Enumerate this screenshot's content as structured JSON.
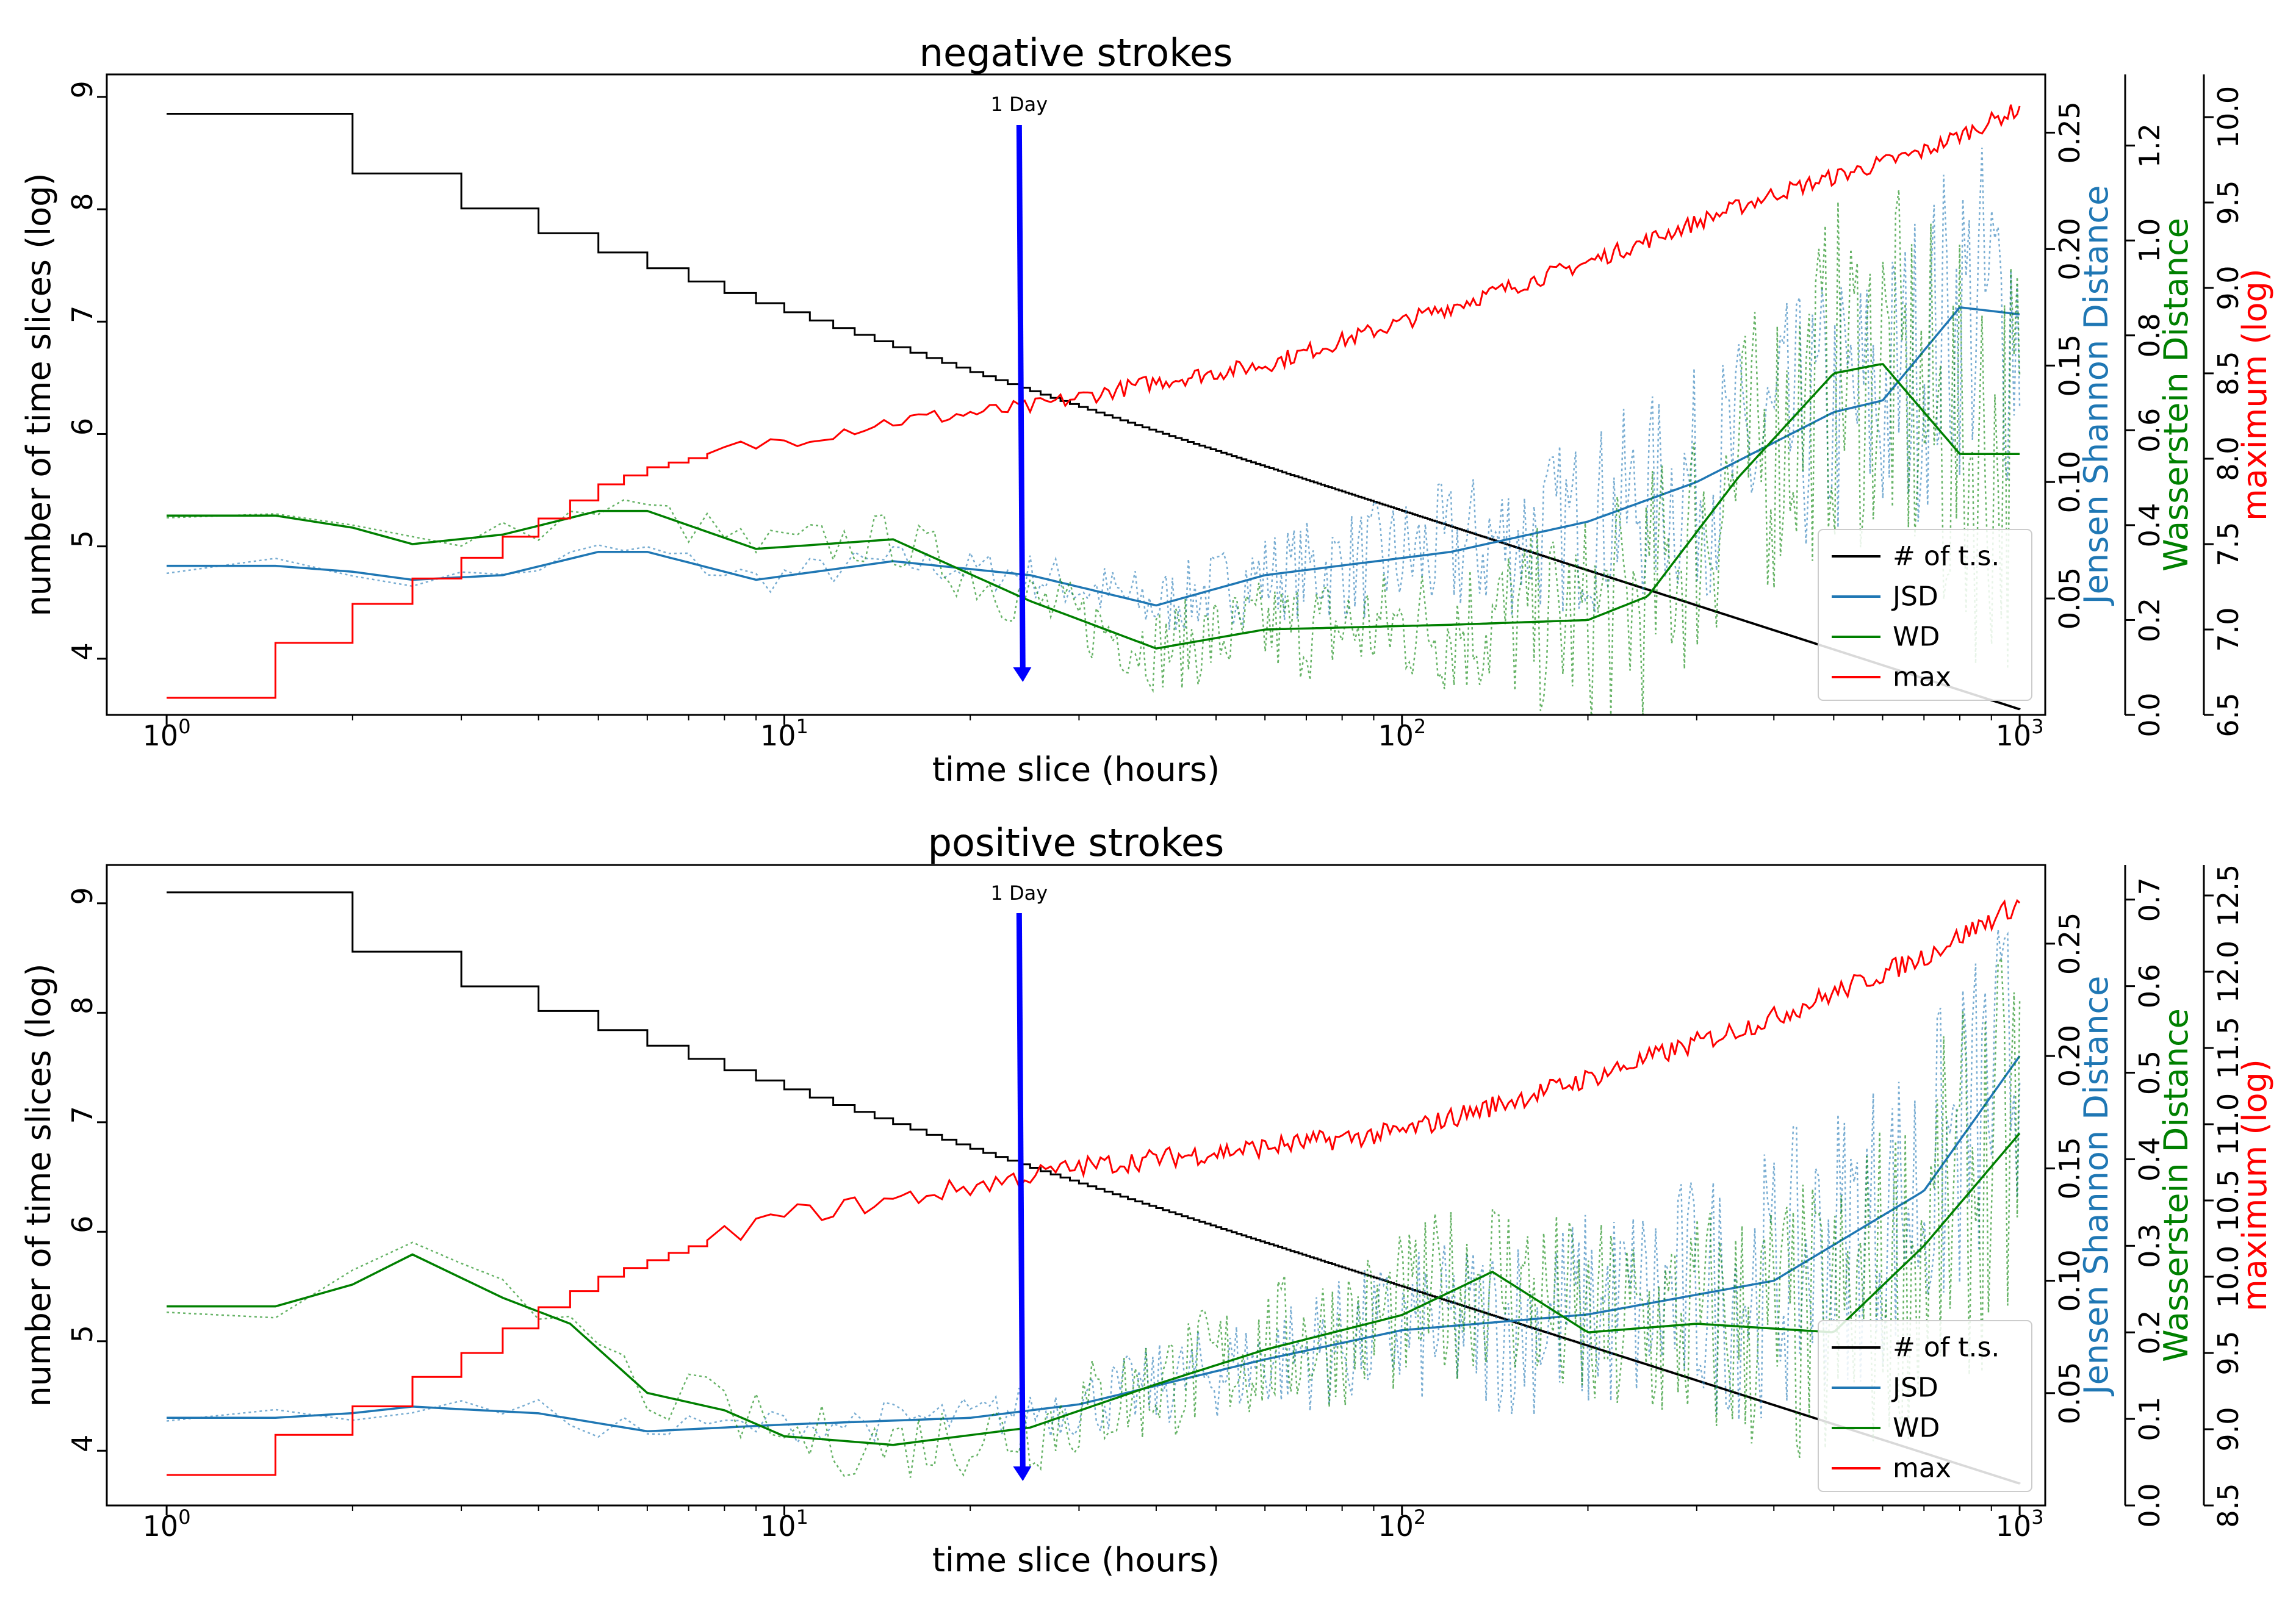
{
  "chart_data": [
    {
      "type": "line",
      "title": "negative strokes",
      "xlabel": "time slice (hours)",
      "xscale": "log",
      "xlim": [
        0.8,
        1100
      ],
      "x_ticks": [
        {
          "value": 1,
          "base": "10",
          "exp": "0"
        },
        {
          "value": 10,
          "base": "10",
          "exp": "1"
        },
        {
          "value": 100,
          "base": "10",
          "exp": "2"
        },
        {
          "value": 1000,
          "base": "10",
          "exp": "3"
        }
      ],
      "left_axis": {
        "label": "number of time slices (log)",
        "color": "#000000",
        "ylim": [
          3.5,
          9.2
        ],
        "ticks": [
          {
            "value": 4,
            "label": "4"
          },
          {
            "value": 5,
            "label": "5"
          },
          {
            "value": 6,
            "label": "6"
          },
          {
            "value": 7,
            "label": "7"
          },
          {
            "value": 8,
            "label": "8"
          },
          {
            "value": 9,
            "label": "9"
          }
        ]
      },
      "right_axes": [
        {
          "id": "jsd",
          "label": "Jensen Shannon Distance",
          "color": "#1f77b4",
          "ylim": [
            0.0,
            0.275
          ],
          "ticks": [
            {
              "value": 0.05,
              "label": "0.05"
            },
            {
              "value": 0.1,
              "label": "0.10"
            },
            {
              "value": 0.15,
              "label": "0.15"
            },
            {
              "value": 0.2,
              "label": "0.20"
            },
            {
              "value": 0.25,
              "label": "0.25"
            }
          ]
        },
        {
          "id": "wd",
          "label": "Wasserstein Distance",
          "color": "#008000",
          "ylim": [
            0.0,
            1.35
          ],
          "ticks": [
            {
              "value": 0.0,
              "label": "0.0"
            },
            {
              "value": 0.2,
              "label": "0.2"
            },
            {
              "value": 0.4,
              "label": "0.4"
            },
            {
              "value": 0.6,
              "label": "0.6"
            },
            {
              "value": 0.8,
              "label": "0.8"
            },
            {
              "value": 1.0,
              "label": "1.0"
            },
            {
              "value": 1.2,
              "label": "1.2"
            }
          ]
        },
        {
          "id": "max",
          "label": "maximum (log)",
          "color": "#ff0000",
          "ylim": [
            6.5,
            10.25
          ],
          "ticks": [
            {
              "value": 6.5,
              "label": "6.5"
            },
            {
              "value": 7.0,
              "label": "7.0"
            },
            {
              "value": 7.5,
              "label": "7.5"
            },
            {
              "value": 8.0,
              "label": "8.0"
            },
            {
              "value": 8.5,
              "label": "8.5"
            },
            {
              "value": 9.0,
              "label": "9.0"
            },
            {
              "value": 9.5,
              "label": "9.5"
            },
            {
              "value": 10.0,
              "label": "10.0"
            }
          ]
        }
      ],
      "annotation": {
        "text": "1 Day",
        "x": 24
      },
      "legend": {
        "position": "lower right",
        "entries": [
          {
            "label": "# of t.s.",
            "color": "#000000"
          },
          {
            "label": "JSD",
            "color": "#1f77b4"
          },
          {
            "label": "WD",
            "color": "#008000"
          },
          {
            "label": "max",
            "color": "#ff0000"
          }
        ]
      },
      "series": [
        {
          "name": "# of t.s.",
          "axis": "left",
          "kind": "count",
          "start": 8.85,
          "end": 3.55
        },
        {
          "name": "JSD",
          "axis": "jsd",
          "kind": "smooth",
          "points": [
            [
              1,
              0.064
            ],
            [
              1.7,
              0.064
            ],
            [
              2.5,
              0.058
            ],
            [
              3.5,
              0.06
            ],
            [
              5,
              0.07
            ],
            [
              6,
              0.07
            ],
            [
              9,
              0.058
            ],
            [
              15,
              0.066
            ],
            [
              25,
              0.06
            ],
            [
              40,
              0.047
            ],
            [
              60,
              0.06
            ],
            [
              120,
              0.07
            ],
            [
              200,
              0.083
            ],
            [
              300,
              0.1
            ],
            [
              500,
              0.13
            ],
            [
              600,
              0.135
            ],
            [
              800,
              0.175
            ],
            [
              1000,
              0.172
            ]
          ],
          "noise": [
            [
              1,
              0.002
            ],
            [
              20,
              0.005
            ],
            [
              60,
              0.012
            ],
            [
              200,
              0.025
            ],
            [
              1000,
              0.05
            ]
          ]
        },
        {
          "name": "WD",
          "axis": "wd",
          "kind": "smooth",
          "points": [
            [
              1,
              0.42
            ],
            [
              1.7,
              0.42
            ],
            [
              2.5,
              0.36
            ],
            [
              3.5,
              0.38
            ],
            [
              5,
              0.43
            ],
            [
              6,
              0.43
            ],
            [
              9,
              0.35
            ],
            [
              15,
              0.37
            ],
            [
              25,
              0.24
            ],
            [
              40,
              0.14
            ],
            [
              60,
              0.18
            ],
            [
              120,
              0.19
            ],
            [
              200,
              0.2
            ],
            [
              250,
              0.25
            ],
            [
              350,
              0.5
            ],
            [
              500,
              0.72
            ],
            [
              600,
              0.74
            ],
            [
              800,
              0.55
            ],
            [
              1000,
              0.55
            ]
          ],
          "noise": [
            [
              1,
              0.005
            ],
            [
              20,
              0.04
            ],
            [
              100,
              0.08
            ],
            [
              300,
              0.18
            ],
            [
              1000,
              0.3
            ]
          ]
        },
        {
          "name": "max",
          "axis": "max",
          "kind": "rising",
          "points": [
            [
              1,
              6.6
            ],
            [
              2,
              7.15
            ],
            [
              3,
              7.42
            ],
            [
              4,
              7.65
            ],
            [
              5,
              7.85
            ],
            [
              6,
              7.95
            ],
            [
              8,
              8.05
            ],
            [
              15,
              8.22
            ],
            [
              25,
              8.3
            ],
            [
              40,
              8.45
            ],
            [
              60,
              8.55
            ],
            [
              100,
              8.8
            ],
            [
              200,
              9.15
            ],
            [
              400,
              9.55
            ],
            [
              700,
              9.8
            ],
            [
              1000,
              10.05
            ]
          ],
          "noise": 0.05
        }
      ]
    },
    {
      "type": "line",
      "title": "positive strokes",
      "xlabel": "time slice (hours)",
      "xscale": "log",
      "xlim": [
        0.8,
        1100
      ],
      "x_ticks": [
        {
          "value": 1,
          "base": "10",
          "exp": "0"
        },
        {
          "value": 10,
          "base": "10",
          "exp": "1"
        },
        {
          "value": 100,
          "base": "10",
          "exp": "2"
        },
        {
          "value": 1000,
          "base": "10",
          "exp": "3"
        }
      ],
      "left_axis": {
        "label": "number of time slices (log)",
        "color": "#000000",
        "ylim": [
          3.5,
          9.35
        ],
        "ticks": [
          {
            "value": 4,
            "label": "4"
          },
          {
            "value": 5,
            "label": "5"
          },
          {
            "value": 6,
            "label": "6"
          },
          {
            "value": 7,
            "label": "7"
          },
          {
            "value": 8,
            "label": "8"
          },
          {
            "value": 9,
            "label": "9"
          }
        ]
      },
      "right_axes": [
        {
          "id": "jsd",
          "label": "Jensen Shannon Distance",
          "color": "#1f77b4",
          "ylim": [
            0.0,
            0.285
          ],
          "ticks": [
            {
              "value": 0.05,
              "label": "0.05"
            },
            {
              "value": 0.1,
              "label": "0.10"
            },
            {
              "value": 0.15,
              "label": "0.15"
            },
            {
              "value": 0.2,
              "label": "0.20"
            },
            {
              "value": 0.25,
              "label": "0.25"
            }
          ]
        },
        {
          "id": "wd",
          "label": "Wasserstein Distance",
          "color": "#008000",
          "ylim": [
            0.0,
            0.74
          ],
          "ticks": [
            {
              "value": 0.0,
              "label": "0.0"
            },
            {
              "value": 0.1,
              "label": "0.1"
            },
            {
              "value": 0.2,
              "label": "0.2"
            },
            {
              "value": 0.3,
              "label": "0.3"
            },
            {
              "value": 0.4,
              "label": "0.4"
            },
            {
              "value": 0.5,
              "label": "0.5"
            },
            {
              "value": 0.6,
              "label": "0.6"
            },
            {
              "value": 0.7,
              "label": "0.7"
            }
          ]
        },
        {
          "id": "max",
          "label": "maximum (log)",
          "color": "#ff0000",
          "ylim": [
            8.5,
            12.7
          ],
          "ticks": [
            {
              "value": 8.5,
              "label": "8.5"
            },
            {
              "value": 9.0,
              "label": "9.0"
            },
            {
              "value": 9.5,
              "label": "9.5"
            },
            {
              "value": 10.0,
              "label": "10.0"
            },
            {
              "value": 10.5,
              "label": "10.5"
            },
            {
              "value": 11.0,
              "label": "11.0"
            },
            {
              "value": 11.5,
              "label": "11.5"
            },
            {
              "value": 12.0,
              "label": "12.0"
            },
            {
              "value": 12.5,
              "label": "12.5"
            }
          ]
        }
      ],
      "annotation": {
        "text": "1 Day",
        "x": 24
      },
      "legend": {
        "position": "lower right",
        "entries": [
          {
            "label": "# of t.s.",
            "color": "#000000"
          },
          {
            "label": "JSD",
            "color": "#1f77b4"
          },
          {
            "label": "WD",
            "color": "#008000"
          },
          {
            "label": "max",
            "color": "#ff0000"
          }
        ]
      },
      "series": [
        {
          "name": "# of t.s.",
          "axis": "left",
          "kind": "count",
          "start": 9.1,
          "end": 3.7
        },
        {
          "name": "JSD",
          "axis": "jsd",
          "kind": "smooth",
          "points": [
            [
              1,
              0.039
            ],
            [
              1.7,
              0.039
            ],
            [
              2.5,
              0.044
            ],
            [
              4,
              0.041
            ],
            [
              6,
              0.033
            ],
            [
              10,
              0.036
            ],
            [
              20,
              0.039
            ],
            [
              30,
              0.045
            ],
            [
              60,
              0.065
            ],
            [
              100,
              0.078
            ],
            [
              200,
              0.085
            ],
            [
              400,
              0.1
            ],
            [
              700,
              0.14
            ],
            [
              1000,
              0.2
            ]
          ],
          "noise": [
            [
              1,
              0.002
            ],
            [
              20,
              0.006
            ],
            [
              60,
              0.015
            ],
            [
              200,
              0.03
            ],
            [
              1000,
              0.05
            ]
          ]
        },
        {
          "name": "WD",
          "axis": "wd",
          "kind": "smooth",
          "points": [
            [
              1,
              0.23
            ],
            [
              1.7,
              0.23
            ],
            [
              2.5,
              0.29
            ],
            [
              3.5,
              0.24
            ],
            [
              4.5,
              0.21
            ],
            [
              6,
              0.13
            ],
            [
              8,
              0.11
            ],
            [
              10,
              0.08
            ],
            [
              15,
              0.07
            ],
            [
              25,
              0.09
            ],
            [
              40,
              0.14
            ],
            [
              60,
              0.18
            ],
            [
              100,
              0.22
            ],
            [
              140,
              0.27
            ],
            [
              200,
              0.2
            ],
            [
              300,
              0.21
            ],
            [
              500,
              0.2
            ],
            [
              700,
              0.3
            ],
            [
              1000,
              0.43
            ]
          ],
          "noise": [
            [
              1,
              0.005
            ],
            [
              20,
              0.03
            ],
            [
              100,
              0.06
            ],
            [
              300,
              0.09
            ],
            [
              1000,
              0.15
            ]
          ]
        },
        {
          "name": "max",
          "axis": "max",
          "kind": "rising",
          "points": [
            [
              1,
              8.7
            ],
            [
              2,
              9.15
            ],
            [
              3,
              9.5
            ],
            [
              4,
              9.8
            ],
            [
              5,
              10.0
            ],
            [
              7,
              10.2
            ],
            [
              10,
              10.4
            ],
            [
              15,
              10.5
            ],
            [
              30,
              10.72
            ],
            [
              60,
              10.85
            ],
            [
              100,
              10.95
            ],
            [
              200,
              11.3
            ],
            [
              400,
              11.7
            ],
            [
              700,
              12.1
            ],
            [
              1000,
              12.45
            ]
          ],
          "noise": 0.07
        }
      ]
    }
  ]
}
